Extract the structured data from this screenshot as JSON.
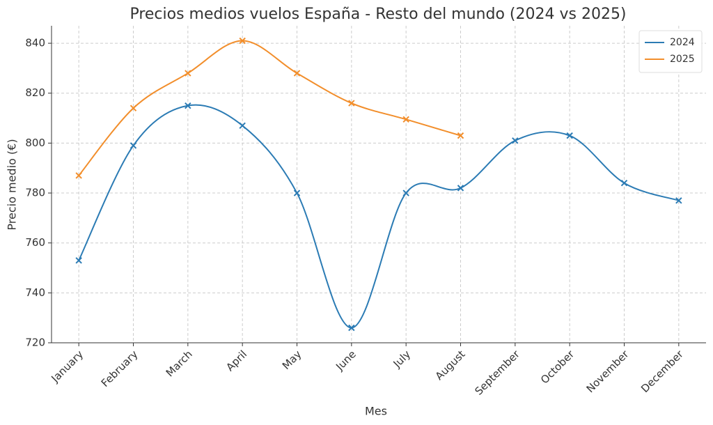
{
  "chart_data": {
    "type": "line",
    "title": "Precios medios vuelos España - Resto del mundo (2024 vs 2025)",
    "x_label": "Mes",
    "y_label": "Precio medio (€)",
    "categories": [
      "January",
      "February",
      "March",
      "April",
      "May",
      "June",
      "July",
      "August",
      "September",
      "October",
      "November",
      "December"
    ],
    "series": [
      {
        "name": "2024",
        "color": "#2b7bb4",
        "values": [
          753,
          799,
          815,
          807,
          780,
          726,
          780,
          782,
          801,
          803,
          784,
          777
        ]
      },
      {
        "name": "2025",
        "color": "#f28e2b",
        "values": [
          787,
          814,
          828,
          841,
          828,
          816,
          809.5,
          803,
          null,
          null,
          null,
          null
        ]
      }
    ],
    "ylim": [
      720,
      847
    ],
    "yticks": [
      720,
      740,
      760,
      780,
      800,
      820,
      840
    ],
    "grid": true,
    "legend": "upper right"
  }
}
